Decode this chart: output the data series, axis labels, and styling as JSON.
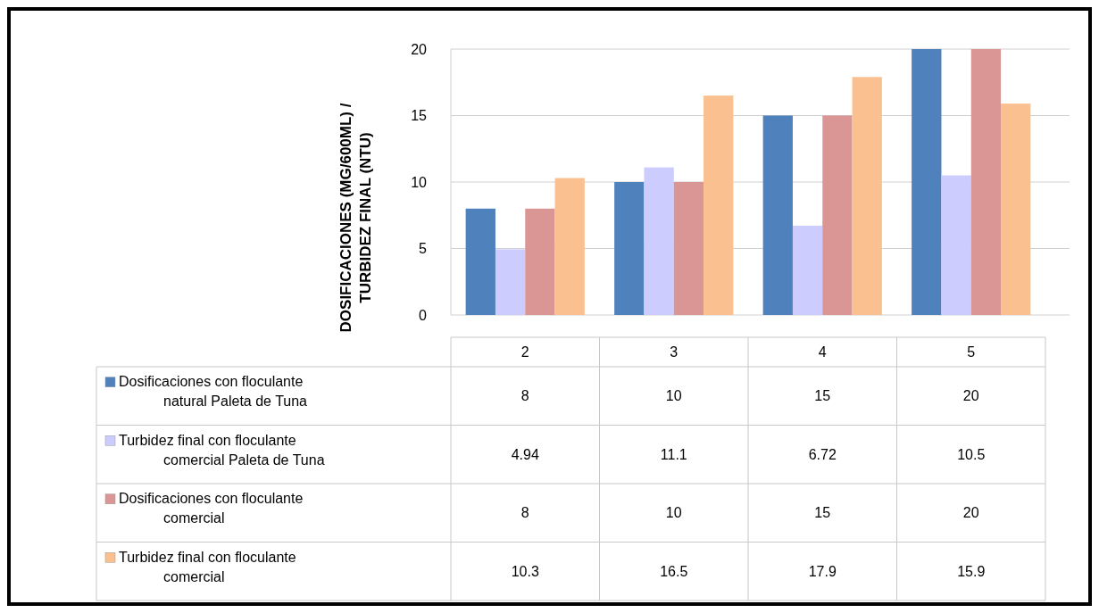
{
  "chart_data": {
    "type": "bar",
    "ylabel": "DOSIFICACIONES (MG/600ML) / TURBIDEZ FINAL (NTU)",
    "categories": [
      "2",
      "3",
      "4",
      "5"
    ],
    "series": [
      {
        "name": "Dosificaciones con floculante natural Paleta de Tuna",
        "color": "#4f81bd",
        "values": [
          8,
          10,
          15,
          20
        ]
      },
      {
        "name": "Turbidez final con floculante comercial Paleta de Tuna",
        "color": "#ccccff",
        "values": [
          4.94,
          11.1,
          6.72,
          10.5
        ]
      },
      {
        "name": "Dosificaciones con floculante comercial",
        "color": "#d99694",
        "values": [
          8,
          10,
          15,
          20
        ]
      },
      {
        "name": "Turbidez final con floculante comercial",
        "color": "#fac090",
        "values": [
          10.3,
          16.5,
          17.9,
          15.9
        ]
      }
    ],
    "ylim": [
      0,
      20
    ],
    "yticks": [
      0,
      5,
      10,
      15,
      20
    ],
    "grid": "y",
    "legend": "bottom",
    "data_labels": true
  }
}
